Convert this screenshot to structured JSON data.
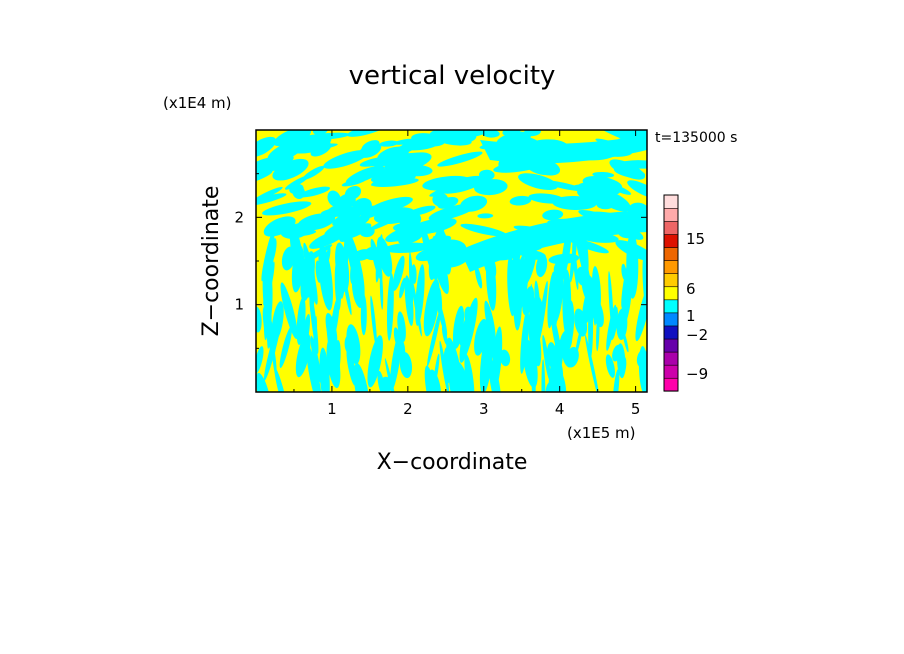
{
  "chart_data": {
    "type": "heatmap",
    "title": "vertical velocity",
    "xlabel": "X−coordinate",
    "ylabel": "Z−coordinate",
    "x_unit": "(x1E5 m)",
    "y_unit": "(x1E4 m)",
    "time_label": "t=135000 s",
    "xlim": [
      0,
      5.15
    ],
    "ylim": [
      0,
      3.0
    ],
    "x_ticks": [
      1,
      2,
      3,
      4,
      5
    ],
    "x_tick_labels": [
      "1",
      "2",
      "3",
      "4",
      "5"
    ],
    "y_ticks": [
      1,
      2
    ],
    "y_tick_labels": [
      "1",
      "2"
    ],
    "field_classes": [
      {
        "level": "positive",
        "color": "#ffff00"
      },
      {
        "level": "negative",
        "color": "#00ffff"
      }
    ],
    "colorbar": {
      "label_values": [
        15,
        6,
        1,
        -2,
        -9
      ],
      "label_texts": [
        "15",
        "6",
        "1",
        "−2",
        "−9"
      ],
      "bands": [
        {
          "color": "#ff00aa"
        },
        {
          "color": "#cc00aa"
        },
        {
          "color": "#aa00aa"
        },
        {
          "color": "#6600aa"
        },
        {
          "color": "#1010c0"
        },
        {
          "color": "#0088ff"
        },
        {
          "color": "#00ffff"
        },
        {
          "color": "#ffff00"
        },
        {
          "color": "#ffcc00"
        },
        {
          "color": "#ff9900"
        },
        {
          "color": "#ee6600"
        },
        {
          "color": "#dd1100"
        },
        {
          "color": "#ee6666"
        },
        {
          "color": "#ffaaaa"
        },
        {
          "color": "#ffdddd"
        }
      ]
    }
  }
}
